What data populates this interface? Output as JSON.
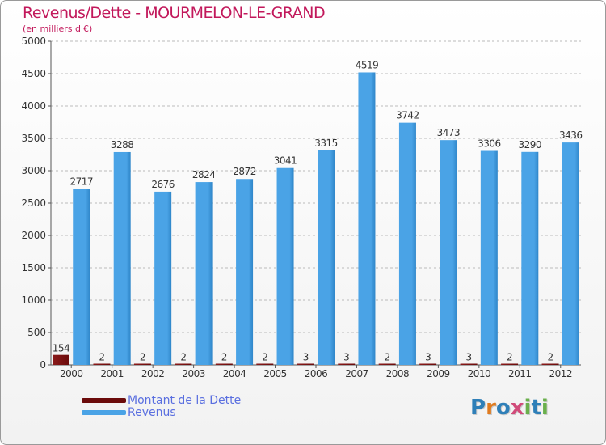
{
  "title": "Revenus/Dette - MOURMELON-LE-GRAND",
  "subtitle": "(en milliers d'€)",
  "legend": {
    "debt_label": "Montant de la Dette",
    "revenue_label": "Revenus"
  },
  "brand": {
    "name": "Proxiti",
    "letters": [
      "P",
      "r",
      "o",
      "x",
      "i",
      "t",
      "i"
    ],
    "letter_colors": [
      "#2e7fb8",
      "#e07b1f",
      "#2e7fb8",
      "#d14b7a",
      "#6ab04c",
      "#2e7fb8",
      "#6ab04c"
    ]
  },
  "colors": {
    "debt": "#6b0b0b",
    "revenue": "#4aa3e6",
    "revenue_dark": "#2f86c9",
    "title": "#c2185b",
    "legend_text": "#5a6fe0",
    "grid": "#bbbbbb"
  },
  "chart_data": {
    "type": "bar",
    "title": "Revenus/Dette - MOURMELON-LE-GRAND",
    "ylabel": "(en milliers d'€)",
    "xlabel": "",
    "ylim": [
      0,
      5000
    ],
    "yticks": [
      0,
      500,
      1000,
      1500,
      2000,
      2500,
      3000,
      3500,
      4000,
      4500,
      5000
    ],
    "grid": true,
    "legend_position": "bottom-left",
    "categories": [
      "2000",
      "2001",
      "2002",
      "2003",
      "2004",
      "2005",
      "2006",
      "2007",
      "2008",
      "2009",
      "2010",
      "2011",
      "2012"
    ],
    "series": [
      {
        "name": "Montant de la Dette",
        "values": [
          154,
          2,
          2,
          2,
          2,
          2,
          3,
          3,
          2,
          3,
          3,
          2,
          2
        ]
      },
      {
        "name": "Revenus",
        "values": [
          2717,
          3288,
          2676,
          2824,
          2872,
          3041,
          3315,
          4519,
          3742,
          3473,
          3306,
          3290,
          3436
        ]
      }
    ]
  }
}
